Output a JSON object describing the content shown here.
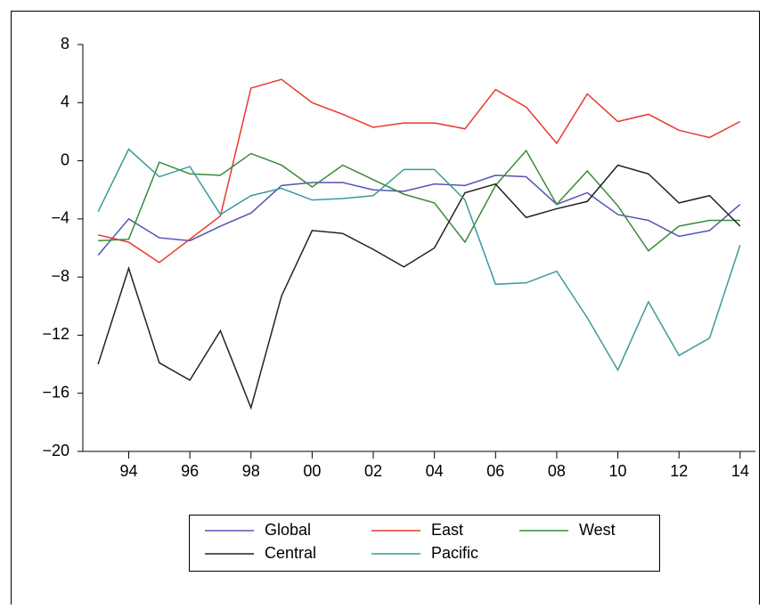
{
  "chart_data": {
    "type": "line",
    "x": [
      1993,
      1994,
      1995,
      1996,
      1997,
      1998,
      1999,
      2000,
      2001,
      2002,
      2003,
      2004,
      2005,
      2006,
      2007,
      2008,
      2009,
      2010,
      2011,
      2012,
      2013,
      2014
    ],
    "series": [
      {
        "name": "Global",
        "color": "#5454b4",
        "values": [
          -6.5,
          -4.0,
          -5.3,
          -5.5,
          -4.5,
          -3.6,
          -1.7,
          -1.5,
          -1.5,
          -2.0,
          -2.1,
          -1.6,
          -1.7,
          -1.0,
          -1.1,
          -3.0,
          -2.2,
          -3.7,
          -4.1,
          -5.2,
          -4.8,
          -3.0
        ]
      },
      {
        "name": "East",
        "color": "#e8392c",
        "values": [
          -5.1,
          -5.6,
          -7.0,
          -5.4,
          -3.8,
          5.0,
          5.6,
          4.0,
          3.2,
          2.3,
          2.6,
          2.6,
          2.2,
          4.9,
          3.7,
          1.2,
          4.6,
          2.7,
          3.2,
          2.1,
          1.6,
          2.7
        ]
      },
      {
        "name": "West",
        "color": "#3a8a3a",
        "values": [
          -5.5,
          -5.4,
          -0.1,
          -0.9,
          -1.0,
          0.5,
          -0.3,
          -1.8,
          -0.3,
          -1.3,
          -2.3,
          -2.9,
          -5.6,
          -1.7,
          0.7,
          -3.0,
          -0.7,
          -3.1,
          -6.2,
          -4.5,
          -4.1,
          -4.1
        ]
      },
      {
        "name": "Central",
        "color": "#222222",
        "values": [
          -14.0,
          -7.4,
          -13.9,
          -15.1,
          -11.7,
          -17.0,
          -9.3,
          -4.8,
          -5.0,
          -6.1,
          -7.3,
          -6.0,
          -2.2,
          -1.6,
          -3.9,
          -3.3,
          -2.8,
          -0.3,
          -0.9,
          -2.9,
          -2.4,
          -4.5
        ]
      },
      {
        "name": "Pacific",
        "color": "#3a9a9a",
        "values": [
          -3.5,
          0.8,
          -1.1,
          -0.4,
          -3.7,
          -2.4,
          -1.9,
          -2.7,
          -2.6,
          -2.4,
          -0.6,
          -0.6,
          -2.7,
          -8.5,
          -8.4,
          -7.6,
          -10.8,
          -14.4,
          -9.7,
          -13.4,
          -12.2,
          -5.8
        ]
      }
    ],
    "xlim": [
      1992.5,
      2014.5
    ],
    "xticks": [
      {
        "value": 1994,
        "label": "94"
      },
      {
        "value": 1996,
        "label": "96"
      },
      {
        "value": 1998,
        "label": "98"
      },
      {
        "value": 2000,
        "label": "00"
      },
      {
        "value": 2002,
        "label": "02"
      },
      {
        "value": 2004,
        "label": "04"
      },
      {
        "value": 2006,
        "label": "06"
      },
      {
        "value": 2008,
        "label": "08"
      },
      {
        "value": 2010,
        "label": "10"
      },
      {
        "value": 2012,
        "label": "12"
      },
      {
        "value": 2014,
        "label": "14"
      }
    ],
    "ylim": [
      -20,
      8
    ],
    "yticks": [
      {
        "value": -20,
        "label": "−20"
      },
      {
        "value": -16,
        "label": "−16"
      },
      {
        "value": -12,
        "label": "−12"
      },
      {
        "value": -8,
        "label": "−8"
      },
      {
        "value": -4,
        "label": "−4"
      },
      0,
      4,
      8
    ]
  }
}
